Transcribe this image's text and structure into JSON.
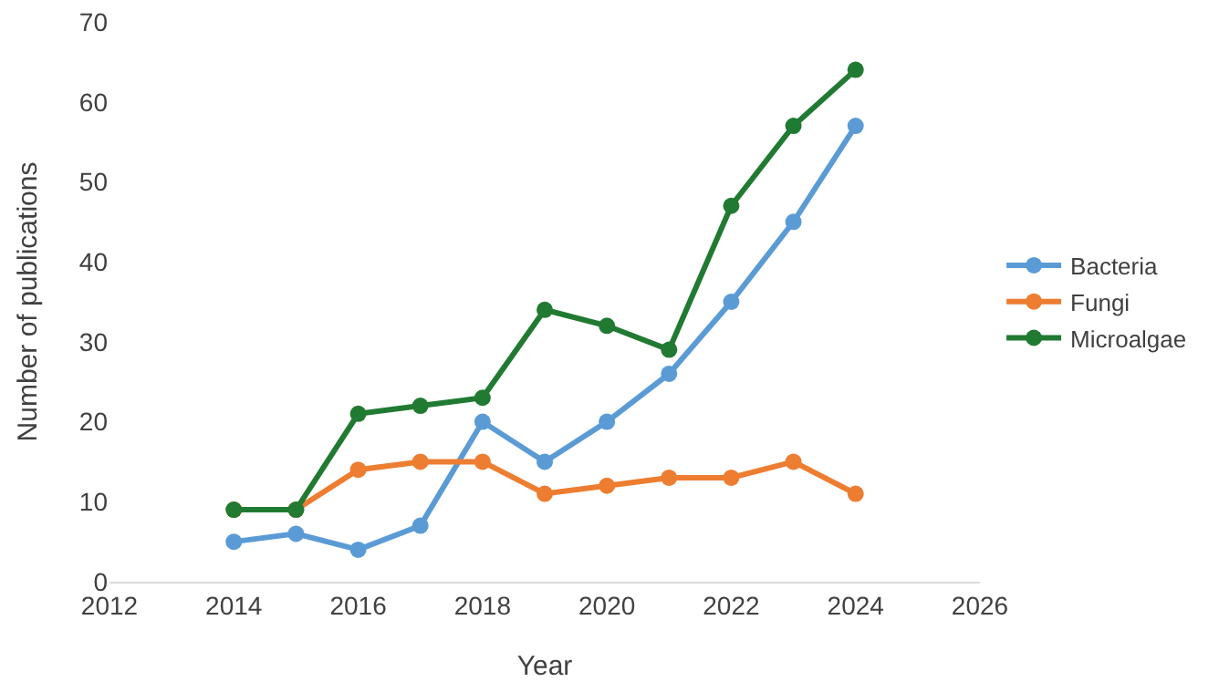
{
  "chart_data": {
    "type": "line",
    "xlabel": "Year",
    "ylabel": "Number of publications",
    "x": [
      2014,
      2015,
      2016,
      2017,
      2018,
      2019,
      2020,
      2021,
      2022,
      2023,
      2024
    ],
    "series": [
      {
        "name": "Bacteria",
        "color": "#5b9bd5",
        "values": [
          5,
          6,
          4,
          7,
          20,
          15,
          20,
          26,
          35,
          45,
          57
        ]
      },
      {
        "name": "Fungi",
        "color": "#ed7d31",
        "values": [
          9,
          9,
          14,
          15,
          15,
          11,
          12,
          13,
          13,
          15,
          11
        ]
      },
      {
        "name": "Microalgae",
        "color": "#217a32",
        "values": [
          9,
          9,
          21,
          22,
          23,
          34,
          32,
          29,
          47,
          57,
          64
        ]
      }
    ],
    "xlim": [
      2012,
      2026
    ],
    "xticks": [
      2012,
      2014,
      2016,
      2018,
      2020,
      2022,
      2024,
      2026
    ],
    "ylim": [
      0,
      70
    ],
    "yticks": [
      0,
      10,
      20,
      30,
      40,
      50,
      60,
      70
    ],
    "grid": false,
    "legend": "right",
    "marker": "circle",
    "line_style": "solid"
  }
}
